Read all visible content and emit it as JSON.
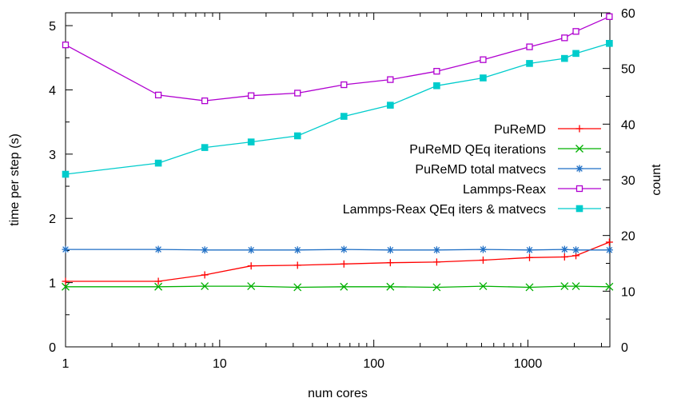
{
  "chart_data": {
    "type": "line",
    "title": "",
    "xlabel": "num cores",
    "ylabel": "time per step (s)",
    "y2label": "count",
    "xscale": "log",
    "xlim": [
      1,
      3400
    ],
    "ylim": [
      0,
      5.2
    ],
    "y2lim": [
      0,
      60
    ],
    "grid": false,
    "legend_position": "center-right",
    "x_tick_labels": [
      "1",
      "10",
      "100",
      "1000"
    ],
    "y_tick_labels": [
      "0",
      "1",
      "2",
      "3",
      "4",
      "5"
    ],
    "y2_tick_labels": [
      "0",
      "10",
      "20",
      "30",
      "40",
      "50",
      "60"
    ],
    "series": [
      {
        "name": "PuReMD",
        "axis": "left",
        "color": "#ff0000",
        "marker": "plus",
        "x": [
          1,
          4,
          8,
          16,
          32,
          64,
          128,
          256,
          512,
          1024,
          1728,
          2048,
          3375
        ],
        "y": [
          1.02,
          1.02,
          1.12,
          1.26,
          1.27,
          1.29,
          1.31,
          1.32,
          1.35,
          1.39,
          1.4,
          1.42,
          1.63
        ]
      },
      {
        "name": "PuReMD QEq iterations",
        "axis": "right",
        "color": "#00b000",
        "marker": "x",
        "x": [
          1,
          4,
          8,
          16,
          32,
          64,
          128,
          256,
          512,
          1024,
          1728,
          2048,
          3375
        ],
        "y": [
          10.8,
          10.8,
          10.9,
          10.9,
          10.7,
          10.8,
          10.8,
          10.7,
          10.9,
          10.7,
          10.9,
          10.9,
          10.8
        ]
      },
      {
        "name": "PuReMD total matvecs",
        "axis": "right",
        "color": "#1f6fc5",
        "marker": "star",
        "x": [
          1,
          4,
          8,
          16,
          32,
          64,
          128,
          256,
          512,
          1024,
          1728,
          2048,
          3375
        ],
        "y": [
          17.5,
          17.5,
          17.4,
          17.4,
          17.4,
          17.5,
          17.4,
          17.4,
          17.5,
          17.4,
          17.5,
          17.4,
          17.4
        ]
      },
      {
        "name": "Lammps-Reax",
        "axis": "left",
        "color": "#b000d0",
        "marker": "square-open",
        "x": [
          1,
          4,
          8,
          16,
          32,
          64,
          128,
          256,
          512,
          1024,
          1728,
          2048,
          3375
        ],
        "y": [
          4.7,
          3.92,
          3.83,
          3.91,
          3.95,
          4.08,
          4.16,
          4.29,
          4.47,
          4.67,
          4.81,
          4.91,
          5.14
        ]
      },
      {
        "name": "Lammps-Reax QEq iters & matvecs",
        "axis": "right",
        "color": "#00cccc",
        "marker": "square-filled",
        "x": [
          1,
          4,
          8,
          16,
          32,
          64,
          128,
          256,
          512,
          1024,
          1728,
          2048,
          3375
        ],
        "y": [
          31.0,
          33.0,
          35.8,
          36.8,
          37.9,
          41.4,
          43.4,
          46.9,
          48.3,
          50.9,
          51.8,
          52.7,
          54.5
        ]
      }
    ]
  }
}
